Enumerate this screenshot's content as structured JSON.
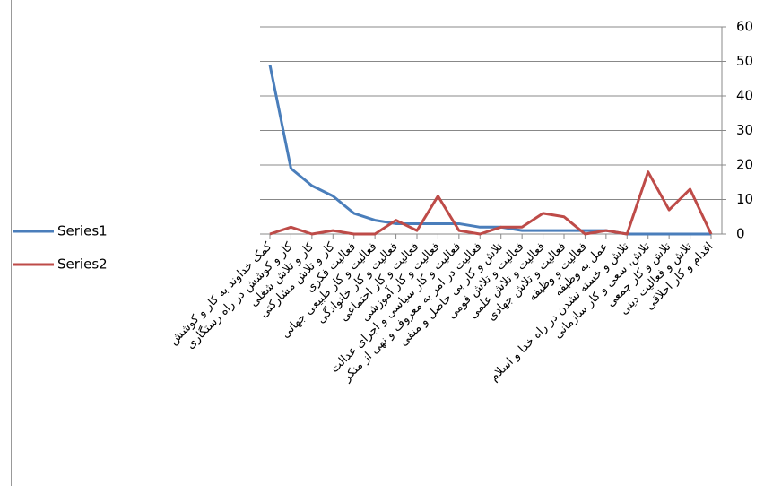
{
  "chart_data": {
    "type": "line",
    "categories": [
      "کمک خداوند به کار و کوشش",
      "کار و کوشش در راه رستگاری",
      "کار و تلاش شغلی",
      "کار و تلاش مشارکتی",
      "فعالیت فکری",
      "فعالیت و کار طبیعی جهانی",
      "فعالیت و کار خانوادگی",
      "فعالیت و کار اجتماعی",
      "فعالیت و کار آموزشی",
      "فعالیت و کار سیاسی و اجرای عدالت",
      "فعالیت در امر به معروف و نهی از منکر",
      "تلاش و کار بی حاصل و منفی",
      "فعالیت و تلاش قومی",
      "فعالیت و تلاش علمی",
      "فعالیت و تلاش جهادی",
      "فعالیت و وظیفه",
      "عمل به وظیفه",
      "تلاش و خسته نشدن در راه خدا و اسلام",
      "تلاش، سعی و کار سازمانی",
      "تلاش و کار جمعی",
      "تلاش و فعالیت دینی",
      "اقدام و کار اخلاقی"
    ],
    "series": [
      {
        "name": "Series1",
        "color": "#4a7ebb",
        "values": [
          49,
          19,
          14,
          11,
          6,
          4,
          3,
          3,
          3,
          3,
          2,
          2,
          1,
          1,
          1,
          1,
          1,
          0,
          0,
          0,
          0,
          0
        ]
      },
      {
        "name": "Series2",
        "color": "#be4b48",
        "values": [
          0,
          2,
          0,
          1,
          0,
          0,
          4,
          1,
          11,
          1,
          0,
          2,
          2,
          6,
          5,
          0,
          1,
          0,
          18,
          7,
          13,
          0
        ]
      }
    ],
    "ylim": [
      0,
      60
    ],
    "yticks": [
      0,
      10,
      20,
      30,
      40,
      50,
      60
    ],
    "grid": true,
    "legend": "left"
  }
}
